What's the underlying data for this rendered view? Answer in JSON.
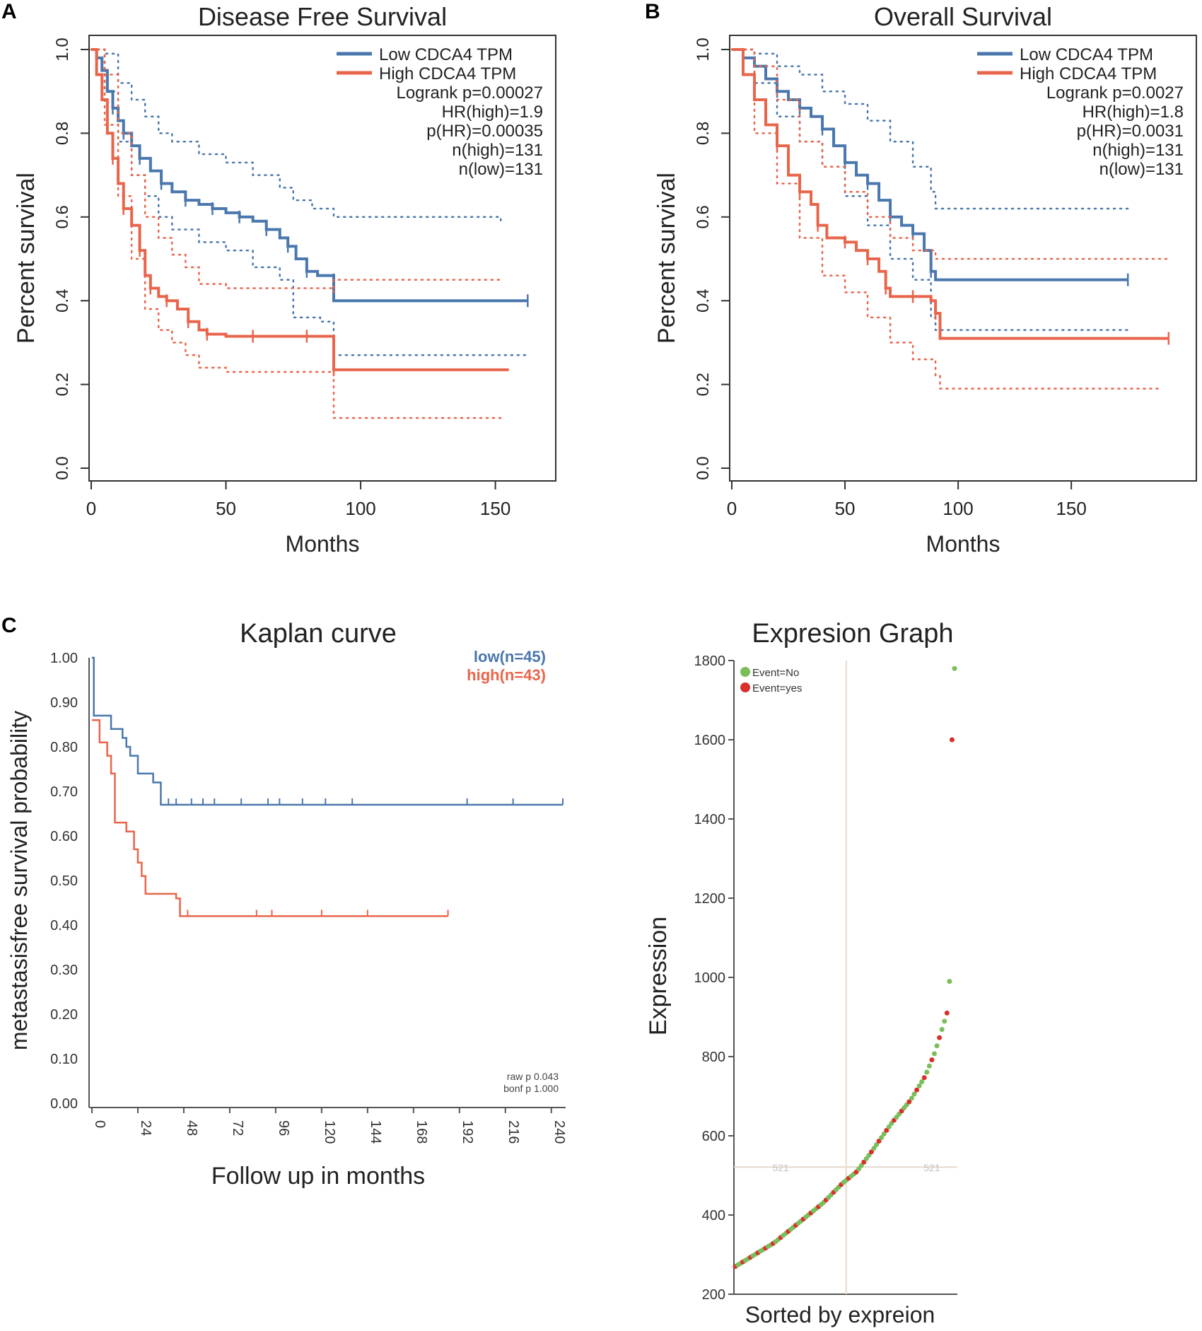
{
  "panels": {
    "A": "A",
    "B": "B",
    "C": "C"
  },
  "colors": {
    "low": "#4a77ad",
    "high": "#e8654b",
    "event_no": "#7bbd5a",
    "event_yes": "#d8312b",
    "ref_line": "#e6d9cc"
  },
  "chart_data": [
    {
      "id": "A",
      "type": "line",
      "title": "Disease Free Survival",
      "xlabel": "Months",
      "ylabel": "Percent survival",
      "xlim": [
        0,
        168
      ],
      "ylim": [
        0,
        1.0
      ],
      "xticks": [
        0,
        50,
        100,
        150
      ],
      "yticks": [
        "0.0",
        "0.2",
        "0.4",
        "0.6",
        "0.8",
        "1.0"
      ],
      "legend": {
        "position": "top-right",
        "entries": [
          "Low CDCA4 TPM",
          "High CDCA4 TPM"
        ],
        "stats": [
          "Logrank p=0.00027",
          "HR(high)=1.9",
          "p(HR)=0.00035",
          "n(high)=131",
          "n(low)=131"
        ]
      },
      "series": [
        {
          "name": "Low CDCA4 TPM",
          "points": [
            [
              0,
              1.0
            ],
            [
              2,
              0.98
            ],
            [
              4,
              0.95
            ],
            [
              6,
              0.9
            ],
            [
              8,
              0.86
            ],
            [
              10,
              0.83
            ],
            [
              12,
              0.8
            ],
            [
              15,
              0.77
            ],
            [
              18,
              0.74
            ],
            [
              22,
              0.71
            ],
            [
              26,
              0.68
            ],
            [
              30,
              0.66
            ],
            [
              35,
              0.64
            ],
            [
              40,
              0.63
            ],
            [
              45,
              0.62
            ],
            [
              50,
              0.61
            ],
            [
              55,
              0.6
            ],
            [
              60,
              0.59
            ],
            [
              65,
              0.57
            ],
            [
              70,
              0.55
            ],
            [
              73,
              0.53
            ],
            [
              76,
              0.5
            ],
            [
              80,
              0.47
            ],
            [
              84,
              0.46
            ],
            [
              90,
              0.45
            ],
            [
              90,
              0.4
            ],
            [
              162,
              0.4
            ]
          ],
          "ci_upper": [
            [
              0,
              1.0
            ],
            [
              5,
              0.99
            ],
            [
              10,
              0.92
            ],
            [
              15,
              0.88
            ],
            [
              20,
              0.84
            ],
            [
              25,
              0.8
            ],
            [
              30,
              0.78
            ],
            [
              40,
              0.75
            ],
            [
              50,
              0.73
            ],
            [
              60,
              0.7
            ],
            [
              70,
              0.67
            ],
            [
              75,
              0.64
            ],
            [
              82,
              0.62
            ],
            [
              90,
              0.6
            ],
            [
              100,
              0.6
            ],
            [
              152,
              0.59
            ]
          ],
          "ci_lower": [
            [
              0,
              1.0
            ],
            [
              5,
              0.9
            ],
            [
              10,
              0.78
            ],
            [
              15,
              0.7
            ],
            [
              20,
              0.65
            ],
            [
              25,
              0.6
            ],
            [
              30,
              0.57
            ],
            [
              40,
              0.54
            ],
            [
              50,
              0.52
            ],
            [
              60,
              0.48
            ],
            [
              70,
              0.45
            ],
            [
              75,
              0.36
            ],
            [
              85,
              0.35
            ],
            [
              90,
              0.33
            ],
            [
              90,
              0.27
            ],
            [
              162,
              0.27
            ]
          ]
        },
        {
          "name": "High CDCA4 TPM",
          "points": [
            [
              0,
              1.0
            ],
            [
              2,
              0.94
            ],
            [
              4,
              0.88
            ],
            [
              6,
              0.8
            ],
            [
              8,
              0.74
            ],
            [
              10,
              0.68
            ],
            [
              12,
              0.62
            ],
            [
              15,
              0.58
            ],
            [
              18,
              0.52
            ],
            [
              20,
              0.46
            ],
            [
              22,
              0.43
            ],
            [
              25,
              0.41
            ],
            [
              28,
              0.4
            ],
            [
              32,
              0.38
            ],
            [
              36,
              0.35
            ],
            [
              40,
              0.33
            ],
            [
              43,
              0.32
            ],
            [
              50,
              0.315
            ],
            [
              60,
              0.315
            ],
            [
              70,
              0.315
            ],
            [
              80,
              0.315
            ],
            [
              90,
              0.31
            ],
            [
              90,
              0.235
            ],
            [
              155,
              0.235
            ]
          ],
          "ci_upper": [
            [
              0,
              1.0
            ],
            [
              5,
              0.94
            ],
            [
              10,
              0.8
            ],
            [
              15,
              0.7
            ],
            [
              20,
              0.6
            ],
            [
              25,
              0.55
            ],
            [
              30,
              0.51
            ],
            [
              35,
              0.48
            ],
            [
              40,
              0.44
            ],
            [
              50,
              0.43
            ],
            [
              70,
              0.43
            ],
            [
              90,
              0.42
            ],
            [
              90,
              0.45
            ],
            [
              152,
              0.45
            ]
          ],
          "ci_lower": [
            [
              0,
              1.0
            ],
            [
              5,
              0.82
            ],
            [
              10,
              0.65
            ],
            [
              15,
              0.5
            ],
            [
              20,
              0.38
            ],
            [
              25,
              0.33
            ],
            [
              30,
              0.3
            ],
            [
              35,
              0.27
            ],
            [
              40,
              0.24
            ],
            [
              50,
              0.23
            ],
            [
              70,
              0.23
            ],
            [
              90,
              0.23
            ],
            [
              90,
              0.12
            ],
            [
              152,
              0.12
            ]
          ]
        }
      ]
    },
    {
      "id": "B",
      "type": "line",
      "title": "Overall Survival",
      "xlabel": "Months",
      "ylabel": "Percent survival",
      "xlim": [
        0,
        200
      ],
      "ylim": [
        0,
        1.0
      ],
      "xticks": [
        0,
        50,
        100,
        150
      ],
      "yticks": [
        "0.0",
        "0.2",
        "0.4",
        "0.6",
        "0.8",
        "1.0"
      ],
      "legend": {
        "position": "top-right",
        "entries": [
          "Low CDCA4 TPM",
          "High CDCA4 TPM"
        ],
        "stats": [
          "Logrank p=0.0027",
          "HR(high)=1.8",
          "p(HR)=0.0031",
          "n(high)=131",
          "n(low)=131"
        ]
      },
      "series": [
        {
          "name": "Low CDCA4 TPM",
          "points": [
            [
              0,
              1.0
            ],
            [
              5,
              0.98
            ],
            [
              10,
              0.96
            ],
            [
              15,
              0.93
            ],
            [
              20,
              0.9
            ],
            [
              25,
              0.88
            ],
            [
              30,
              0.86
            ],
            [
              35,
              0.84
            ],
            [
              40,
              0.81
            ],
            [
              45,
              0.77
            ],
            [
              50,
              0.73
            ],
            [
              55,
              0.7
            ],
            [
              60,
              0.68
            ],
            [
              65,
              0.64
            ],
            [
              70,
              0.6
            ],
            [
              75,
              0.58
            ],
            [
              80,
              0.56
            ],
            [
              85,
              0.52
            ],
            [
              88,
              0.47
            ],
            [
              90,
              0.45
            ],
            [
              175,
              0.45
            ]
          ],
          "ci_upper": [
            [
              0,
              1.0
            ],
            [
              10,
              0.99
            ],
            [
              20,
              0.96
            ],
            [
              30,
              0.94
            ],
            [
              40,
              0.9
            ],
            [
              50,
              0.87
            ],
            [
              60,
              0.83
            ],
            [
              70,
              0.78
            ],
            [
              80,
              0.72
            ],
            [
              88,
              0.66
            ],
            [
              90,
              0.62
            ],
            [
              175,
              0.62
            ]
          ],
          "ci_lower": [
            [
              0,
              1.0
            ],
            [
              10,
              0.92
            ],
            [
              20,
              0.84
            ],
            [
              30,
              0.78
            ],
            [
              40,
              0.72
            ],
            [
              50,
              0.65
            ],
            [
              60,
              0.58
            ],
            [
              70,
              0.5
            ],
            [
              80,
              0.45
            ],
            [
              88,
              0.36
            ],
            [
              90,
              0.33
            ],
            [
              175,
              0.33
            ]
          ]
        },
        {
          "name": "High CDCA4 TPM",
          "points": [
            [
              0,
              1.0
            ],
            [
              5,
              0.94
            ],
            [
              10,
              0.88
            ],
            [
              15,
              0.82
            ],
            [
              20,
              0.77
            ],
            [
              25,
              0.7
            ],
            [
              30,
              0.66
            ],
            [
              35,
              0.63
            ],
            [
              38,
              0.58
            ],
            [
              42,
              0.55
            ],
            [
              50,
              0.54
            ],
            [
              55,
              0.52
            ],
            [
              60,
              0.5
            ],
            [
              65,
              0.47
            ],
            [
              68,
              0.43
            ],
            [
              70,
              0.41
            ],
            [
              80,
              0.41
            ],
            [
              88,
              0.4
            ],
            [
              90,
              0.37
            ],
            [
              92,
              0.31
            ],
            [
              193,
              0.31
            ]
          ],
          "ci_upper": [
            [
              0,
              1.0
            ],
            [
              10,
              0.96
            ],
            [
              20,
              0.88
            ],
            [
              30,
              0.78
            ],
            [
              40,
              0.72
            ],
            [
              50,
              0.66
            ],
            [
              60,
              0.6
            ],
            [
              70,
              0.55
            ],
            [
              80,
              0.52
            ],
            [
              90,
              0.5
            ],
            [
              92,
              0.5
            ],
            [
              193,
              0.5
            ]
          ],
          "ci_lower": [
            [
              0,
              1.0
            ],
            [
              10,
              0.8
            ],
            [
              20,
              0.68
            ],
            [
              30,
              0.55
            ],
            [
              40,
              0.46
            ],
            [
              50,
              0.42
            ],
            [
              60,
              0.36
            ],
            [
              70,
              0.3
            ],
            [
              80,
              0.26
            ],
            [
              90,
              0.22
            ],
            [
              92,
              0.19
            ],
            [
              190,
              0.19
            ]
          ]
        }
      ]
    },
    {
      "id": "C-left",
      "type": "line",
      "title": "Kaplan curve",
      "xlabel": "Follow up in months",
      "ylabel": "metastasisfree survival probability",
      "xlim": [
        0,
        246
      ],
      "ylim": [
        0,
        1.0
      ],
      "xticks": [
        "0",
        "24",
        "48",
        "72",
        "96",
        "120",
        "144",
        "168",
        "192",
        "216",
        "240"
      ],
      "yticks": [
        "0.00",
        "0.10",
        "0.20",
        "0.30",
        "0.40",
        "0.50",
        "0.60",
        "0.70",
        "0.80",
        "0.90",
        "1.00"
      ],
      "legend": {
        "position": "top-right",
        "entries": [
          "low(n=45)",
          "high(n=43)"
        ]
      },
      "annotations": [
        "raw p 0.043",
        "bonf p 1.000"
      ],
      "series": [
        {
          "name": "low(n=45)",
          "points": [
            [
              0,
              1.0
            ],
            [
              1,
              0.87
            ],
            [
              10,
              0.84
            ],
            [
              16,
              0.82
            ],
            [
              18,
              0.8
            ],
            [
              20,
              0.78
            ],
            [
              24,
              0.74
            ],
            [
              32,
              0.72
            ],
            [
              36,
              0.67
            ],
            [
              246,
              0.67
            ]
          ]
        },
        {
          "name": "high(n=43)",
          "points": [
            [
              0,
              0.86
            ],
            [
              4,
              0.81
            ],
            [
              8,
              0.78
            ],
            [
              10,
              0.74
            ],
            [
              12,
              0.63
            ],
            [
              18,
              0.61
            ],
            [
              22,
              0.57
            ],
            [
              24,
              0.54
            ],
            [
              26,
              0.51
            ],
            [
              28,
              0.47
            ],
            [
              44,
              0.46
            ],
            [
              46,
              0.42
            ],
            [
              186,
              0.42
            ]
          ]
        }
      ]
    },
    {
      "id": "C-right",
      "type": "scatter",
      "title": "Expresion Graph",
      "xlabel": "Sorted by expreion",
      "ylabel": "Expression",
      "ylim": [
        200,
        1800
      ],
      "yticks": [
        "200",
        "400",
        "600",
        "800",
        "1000",
        "1200",
        "1400",
        "1600",
        "1800"
      ],
      "legend": {
        "position": "top-left",
        "entries": [
          "Event=No",
          "Event=yes"
        ]
      },
      "cutoff": {
        "value": 521,
        "labels": [
          "521",
          "521"
        ]
      },
      "n_points": 88,
      "curve": [
        [
          0,
          270
        ],
        [
          8,
          300
        ],
        [
          16,
          330
        ],
        [
          26,
          380
        ],
        [
          36,
          430
        ],
        [
          44,
          480
        ],
        [
          50,
          510
        ],
        [
          56,
          560
        ],
        [
          64,
          630
        ],
        [
          72,
          690
        ],
        [
          78,
          750
        ],
        [
          82,
          810
        ],
        [
          86,
          890
        ],
        [
          87,
          910
        ]
      ],
      "outliers": [
        {
          "rank": 85,
          "value": 990,
          "event": "no"
        },
        {
          "rank": 86,
          "value": 1600,
          "event": "yes"
        },
        {
          "rank": 87,
          "value": 1780,
          "event": "no"
        }
      ]
    }
  ]
}
